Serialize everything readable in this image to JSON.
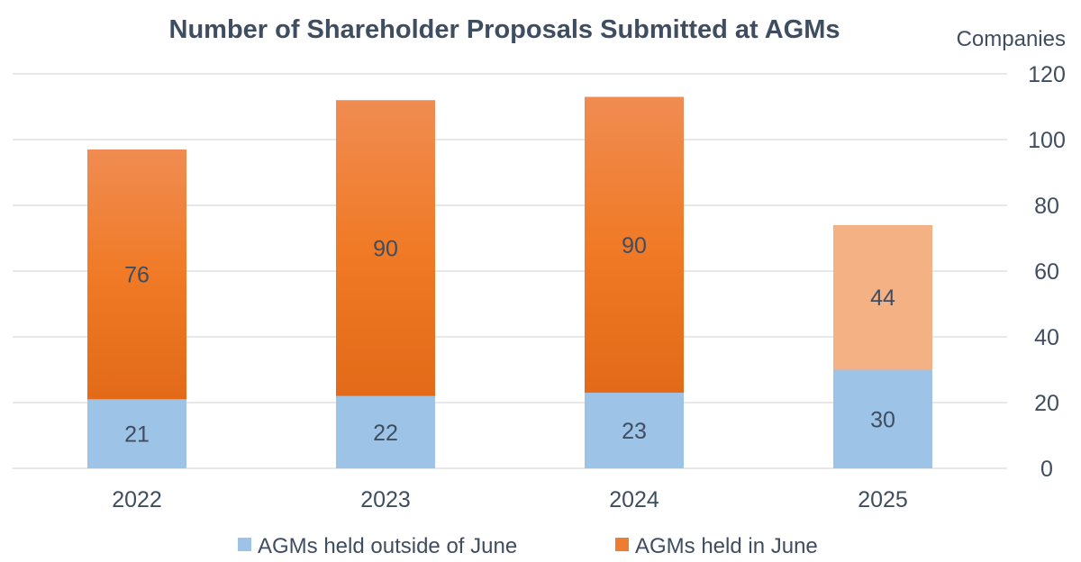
{
  "chart_data": {
    "type": "bar",
    "stacked": true,
    "title": "Number of Shareholder Proposals Submitted at AGMs",
    "ylabel": "Companies",
    "y_axis_position": "right",
    "ylim": [
      0,
      120
    ],
    "yticks": [
      0,
      20,
      40,
      60,
      80,
      100,
      120
    ],
    "grid": true,
    "legend_position": "bottom",
    "categories": [
      "2022",
      "2023",
      "2024",
      "2025"
    ],
    "series": [
      {
        "name": "AGMs held outside of June",
        "values": [
          21,
          22,
          23,
          30
        ],
        "color": "#9dc3e6"
      },
      {
        "name": "AGMs held in June",
        "values": [
          76,
          90,
          90,
          44
        ],
        "color": "#ed7d31",
        "highlight_color": "#f4b183",
        "highlight_index": 3
      }
    ]
  }
}
